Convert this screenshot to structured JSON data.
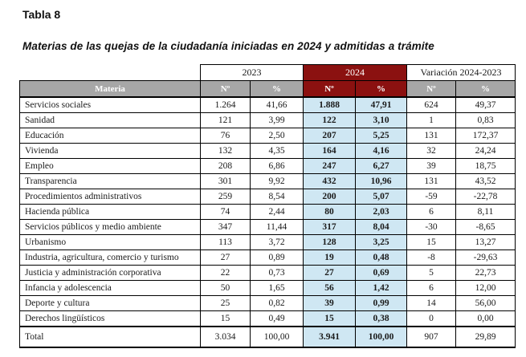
{
  "title": "Tabla 8",
  "subtitle": "Materias de las quejas de la ciudadanía iniciadas en 2024 y admitidas a trámite",
  "colors": {
    "header_red": "#8B1110",
    "header_gray": "#A7A7A7",
    "highlight_blue": "#CFE7F3"
  },
  "table": {
    "groups": [
      "2023",
      "2024",
      "Variación 2024-2023"
    ],
    "materia_header": "Materia",
    "sub_headers": [
      "Nº",
      "%"
    ],
    "rows": [
      {
        "materia": "Servicios sociales",
        "n_2023": "1.264",
        "pct_2023": "41,66",
        "n_2024": "1.888",
        "pct_2024": "47,91",
        "n_var": "624",
        "pct_var": "49,37"
      },
      {
        "materia": "Sanidad",
        "n_2023": "121",
        "pct_2023": "3,99",
        "n_2024": "122",
        "pct_2024": "3,10",
        "n_var": "1",
        "pct_var": "0,83"
      },
      {
        "materia": "Educación",
        "n_2023": "76",
        "pct_2023": "2,50",
        "n_2024": "207",
        "pct_2024": "5,25",
        "n_var": "131",
        "pct_var": "172,37"
      },
      {
        "materia": "Vivienda",
        "n_2023": "132",
        "pct_2023": "4,35",
        "n_2024": "164",
        "pct_2024": "4,16",
        "n_var": "32",
        "pct_var": "24,24"
      },
      {
        "materia": "Empleo",
        "n_2023": "208",
        "pct_2023": "6,86",
        "n_2024": "247",
        "pct_2024": "6,27",
        "n_var": "39",
        "pct_var": "18,75"
      },
      {
        "materia": "Transparencia",
        "n_2023": "301",
        "pct_2023": "9,92",
        "n_2024": "432",
        "pct_2024": "10,96",
        "n_var": "131",
        "pct_var": "43,52"
      },
      {
        "materia": "Procedimientos administrativos",
        "n_2023": "259",
        "pct_2023": "8,54",
        "n_2024": "200",
        "pct_2024": "5,07",
        "n_var": "-59",
        "pct_var": "-22,78"
      },
      {
        "materia": "Hacienda pública",
        "n_2023": "74",
        "pct_2023": "2,44",
        "n_2024": "80",
        "pct_2024": "2,03",
        "n_var": "6",
        "pct_var": "8,11"
      },
      {
        "materia": "Servicios públicos y medio ambiente",
        "n_2023": "347",
        "pct_2023": "11,44",
        "n_2024": "317",
        "pct_2024": "8,04",
        "n_var": "-30",
        "pct_var": "-8,65"
      },
      {
        "materia": "Urbanismo",
        "n_2023": "113",
        "pct_2023": "3,72",
        "n_2024": "128",
        "pct_2024": "3,25",
        "n_var": "15",
        "pct_var": "13,27"
      },
      {
        "materia": "Industria, agricultura, comercio y turismo",
        "n_2023": "27",
        "pct_2023": "0,89",
        "n_2024": "19",
        "pct_2024": "0,48",
        "n_var": "-8",
        "pct_var": "-29,63"
      },
      {
        "materia": "Justicia y administración corporativa",
        "n_2023": "22",
        "pct_2023": "0,73",
        "n_2024": "27",
        "pct_2024": "0,69",
        "n_var": "5",
        "pct_var": "22,73"
      },
      {
        "materia": "Infancia y adolescencia",
        "n_2023": "50",
        "pct_2023": "1,65",
        "n_2024": "56",
        "pct_2024": "1,42",
        "n_var": "6",
        "pct_var": "12,00"
      },
      {
        "materia": "Deporte y cultura",
        "n_2023": "25",
        "pct_2023": "0,82",
        "n_2024": "39",
        "pct_2024": "0,99",
        "n_var": "14",
        "pct_var": "56,00"
      },
      {
        "materia": "Derechos lingüísticos",
        "n_2023": "15",
        "pct_2023": "0,49",
        "n_2024": "15",
        "pct_2024": "0,38",
        "n_var": "0",
        "pct_var": "0,00"
      }
    ],
    "total": {
      "materia": "Total",
      "n_2023": "3.034",
      "pct_2023": "100,00",
      "n_2024": "3.941",
      "pct_2024": "100,00",
      "n_var": "907",
      "pct_var": "29,89"
    }
  }
}
